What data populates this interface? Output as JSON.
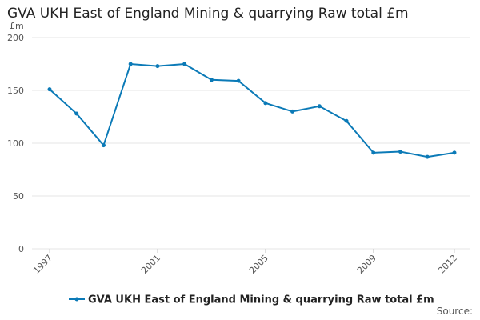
{
  "chart_data": {
    "type": "line",
    "title": "GVA UKH East of England Mining & quarrying Raw total £m",
    "ylabel": "£m",
    "xlabel": "",
    "ylim": [
      0,
      200
    ],
    "yticks": [
      0,
      50,
      100,
      150,
      200
    ],
    "xlim": [
      1997,
      2012
    ],
    "xticks": [
      1997,
      2001,
      2005,
      2009,
      2012
    ],
    "grid": true,
    "legend_position": "bottom",
    "series": [
      {
        "name": "GVA UKH East of England Mining & quarrying Raw total £m",
        "color": "#0b7ab7",
        "x": [
          1997,
          1998,
          1999,
          2000,
          2001,
          2002,
          2003,
          2004,
          2005,
          2006,
          2007,
          2008,
          2009,
          2010,
          2011,
          2012
        ],
        "values": [
          151,
          128,
          98,
          175,
          173,
          175,
          160,
          159,
          138,
          130,
          135,
          121,
          91,
          92,
          87,
          91
        ]
      }
    ]
  },
  "source_label": "Source:"
}
